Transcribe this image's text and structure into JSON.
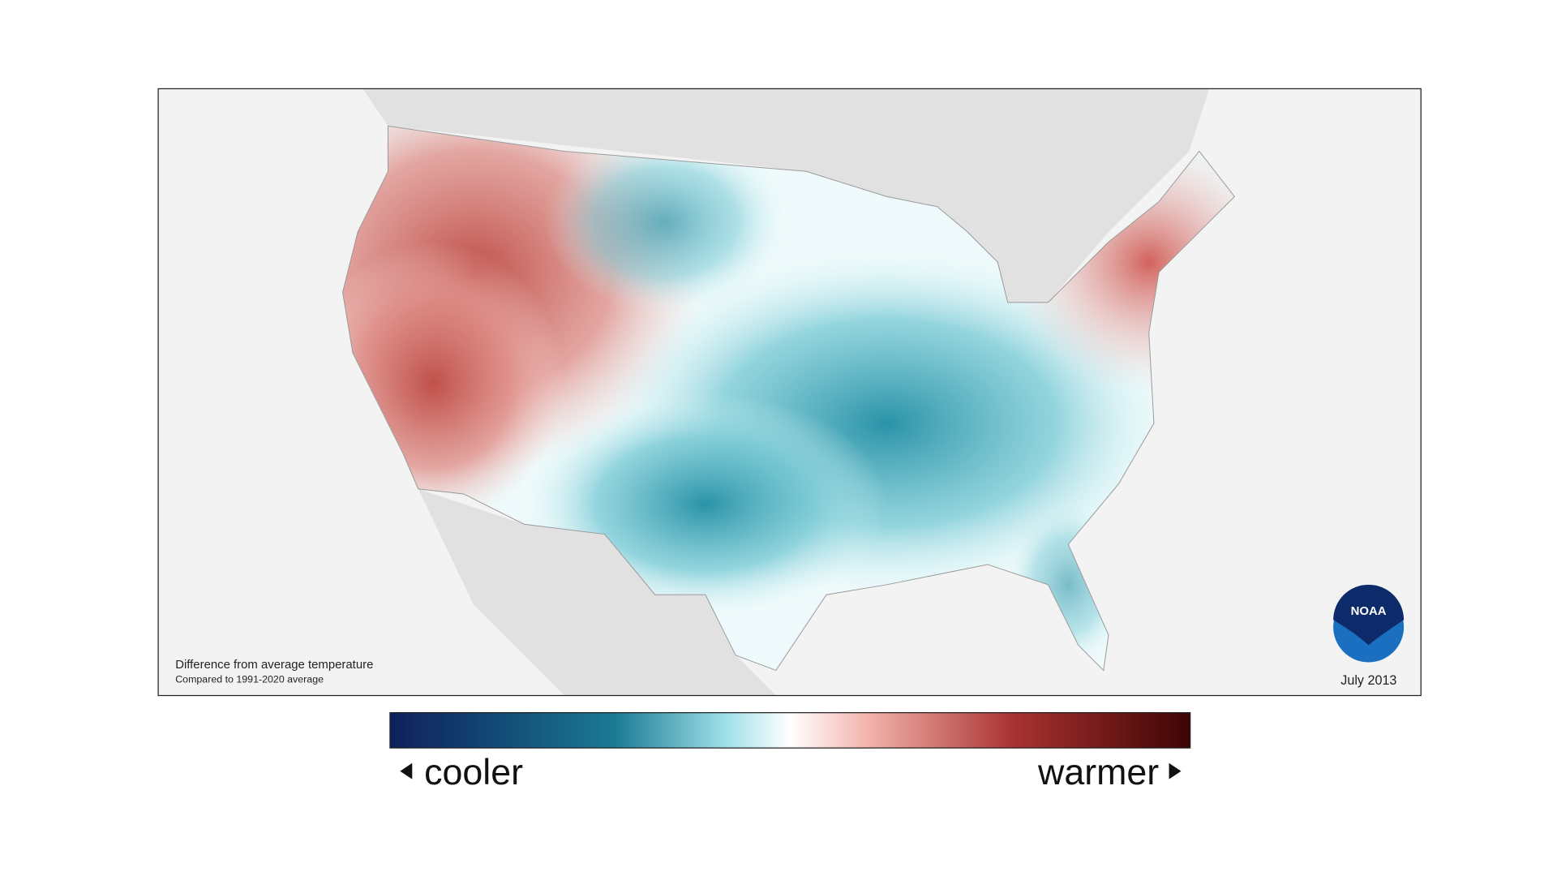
{
  "map": {
    "caption": "Difference from average temperature",
    "subcaption": "Compared to 1991-2020 average",
    "date": "July 2013",
    "logo": "NOAA"
  },
  "legend": {
    "low_label": "cooler",
    "high_label": "warmer"
  }
}
